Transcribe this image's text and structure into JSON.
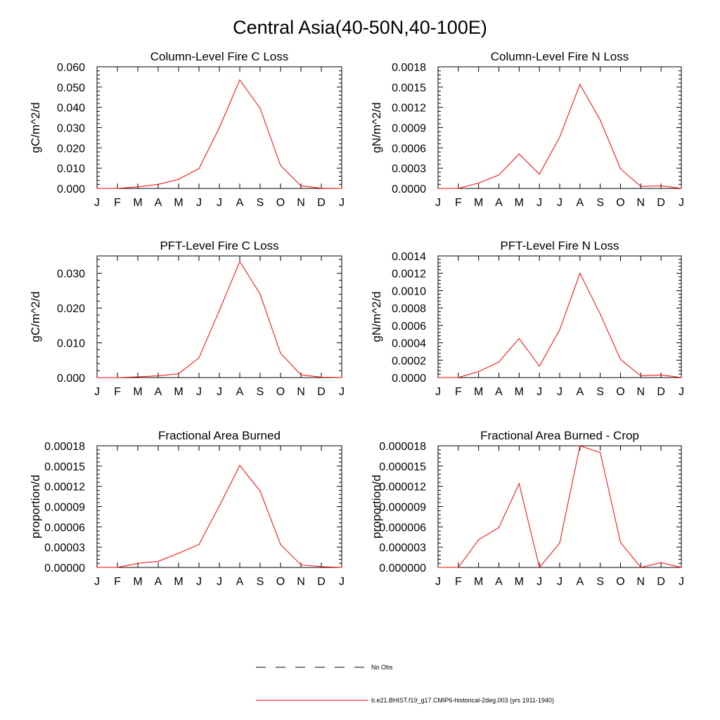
{
  "title": "Central Asia(40-50N,40-100E)",
  "chart_data": [
    {
      "type": "line",
      "title": "Column-Level Fire C Loss",
      "ylabel": "gC/m^2/d",
      "categories": [
        "J",
        "F",
        "M",
        "A",
        "M",
        "J",
        "J",
        "A",
        "S",
        "O",
        "N",
        "D",
        "J"
      ],
      "ylim": [
        0,
        0.06
      ],
      "yticks": [
        "0.000",
        "0.010",
        "0.020",
        "0.030",
        "0.040",
        "0.050",
        "0.060"
      ],
      "series": [
        {
          "values": [
            0.0,
            0.0,
            0.0008,
            0.002,
            0.0045,
            0.0098,
            0.03,
            0.0535,
            0.0395,
            0.0113,
            0.0013,
            0.0001,
            0.0
          ]
        }
      ]
    },
    {
      "type": "line",
      "title": "Column-Level Fire N Loss",
      "ylabel": "gN/m^2/d",
      "categories": [
        "J",
        "F",
        "M",
        "A",
        "M",
        "J",
        "J",
        "A",
        "S",
        "O",
        "N",
        "D",
        "J"
      ],
      "ylim": [
        0,
        0.0018
      ],
      "yticks": [
        "0.0000",
        "0.0003",
        "0.0006",
        "0.0009",
        "0.0012",
        "0.0015",
        "0.0018"
      ],
      "series": [
        {
          "values": [
            0.0,
            0.0,
            8e-05,
            0.0002,
            0.00051,
            0.00021,
            0.00076,
            0.00154,
            0.00101,
            0.00029,
            3e-05,
            4e-05,
            0.0
          ]
        }
      ]
    },
    {
      "type": "line",
      "title": "PFT-Level Fire C Loss",
      "ylabel": "gC/m^2/d",
      "categories": [
        "J",
        "F",
        "M",
        "A",
        "M",
        "J",
        "J",
        "A",
        "S",
        "O",
        "N",
        "D",
        "J"
      ],
      "ylim": [
        0,
        0.035
      ],
      "yticks": [
        "0.000",
        "0.010",
        "0.020",
        "0.030"
      ],
      "series": [
        {
          "values": [
            0.0,
            0.0,
            0.0002,
            0.0005,
            0.0011,
            0.0057,
            0.0193,
            0.0334,
            0.024,
            0.007,
            0.0008,
            0.0001,
            0.0
          ]
        }
      ]
    },
    {
      "type": "line",
      "title": "PFT-Level Fire N Loss",
      "ylabel": "gN/m^2/d",
      "categories": [
        "J",
        "F",
        "M",
        "A",
        "M",
        "J",
        "J",
        "A",
        "S",
        "O",
        "N",
        "D",
        "J"
      ],
      "ylim": [
        0,
        0.0014
      ],
      "yticks": [
        "0.0000",
        "0.0002",
        "0.0004",
        "0.0006",
        "0.0008",
        "0.0010",
        "0.0012",
        "0.0014"
      ],
      "series": [
        {
          "values": [
            0.0,
            0.0,
            7e-05,
            0.00018,
            0.00045,
            0.00013,
            0.00055,
            0.0012,
            0.00073,
            0.00021,
            2e-05,
            3e-05,
            0.0
          ]
        }
      ]
    },
    {
      "type": "line",
      "title": "Fractional Area Burned",
      "ylabel": "proportion/d",
      "categories": [
        "J",
        "F",
        "M",
        "A",
        "M",
        "J",
        "J",
        "A",
        "S",
        "O",
        "N",
        "D",
        "J"
      ],
      "ylim": [
        0,
        0.00018
      ],
      "yticks": [
        "0.00000",
        "0.00003",
        "0.00006",
        "0.00009",
        "0.00012",
        "0.00015",
        "0.00018"
      ],
      "series": [
        {
          "values": [
            0.0,
            0.0,
            6e-06,
            9e-06,
            2.1e-05,
            3.4e-05,
            9.1e-05,
            0.000151,
            0.000113,
            3.4e-05,
            4e-06,
            1e-06,
            0.0
          ]
        }
      ]
    },
    {
      "type": "line",
      "title": "Fractional Area Burned - Crop",
      "ylabel": "proportion/d",
      "categories": [
        "J",
        "F",
        "M",
        "A",
        "M",
        "J",
        "J",
        "A",
        "S",
        "O",
        "N",
        "D",
        "J"
      ],
      "ylim": [
        0,
        1.8e-05
      ],
      "yticks": [
        "0.000000",
        "0.000003",
        "0.000006",
        "0.000009",
        "0.000012",
        "0.000015",
        "0.000018"
      ],
      "series": [
        {
          "values": [
            0.0,
            0.0,
            4.1e-06,
            5.9e-06,
            1.24e-05,
            0.0,
            3.6e-06,
            1.8e-05,
            1.7e-05,
            3.7e-06,
            0.0,
            7e-07,
            0.0
          ]
        }
      ]
    }
  ],
  "legend": {
    "items": [
      {
        "label": "No Obs",
        "style": "dashed",
        "color": "#000000"
      },
      {
        "label": "b.e21.BHIST.f19_g17.CMIP6-historical-2deg.003 (yrs 1911-1940)",
        "style": "solid",
        "color": "#ff0000"
      }
    ]
  },
  "colors": {
    "series": "#ff0000",
    "axis": "#000000"
  }
}
